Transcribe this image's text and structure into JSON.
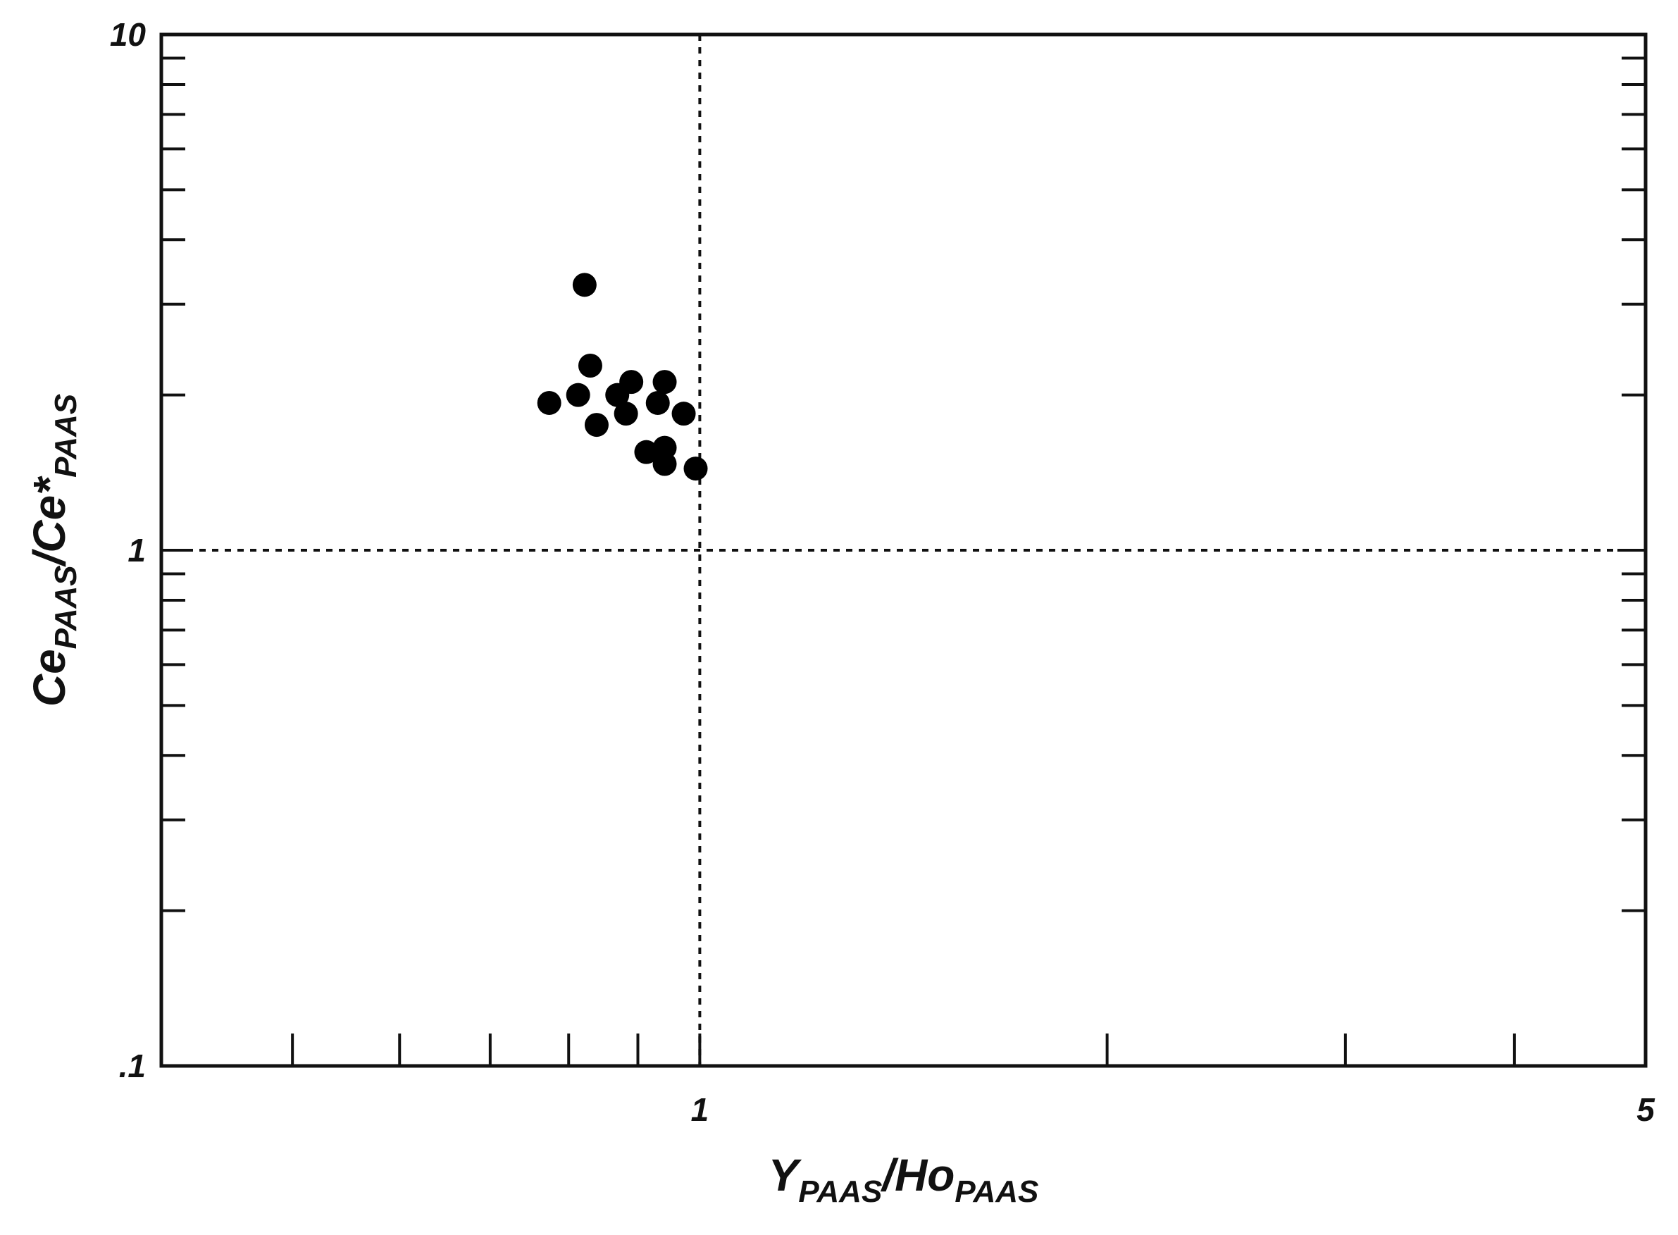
{
  "chart_data": {
    "type": "scatter",
    "xlabel": [
      "Y",
      "PAAS",
      "/Ho",
      "PAAS"
    ],
    "ylabel": [
      "Ce",
      "PAAS",
      "/Ce*",
      "PAAS"
    ],
    "xscale": "log",
    "yscale": "log",
    "xlim": [
      0.4,
      5
    ],
    "ylim": [
      0.1,
      10
    ],
    "xticks": [
      1,
      5
    ],
    "yticks": [
      {
        "value": 0.1,
        "label": ".1"
      },
      1,
      10
    ],
    "xminorticks": [
      0.5,
      0.6,
      0.7,
      0.8,
      0.9,
      2,
      3,
      4
    ],
    "yminorticks": [
      0.2,
      0.3,
      0.4,
      0.5,
      0.6,
      0.7,
      0.8,
      0.9,
      2,
      3,
      4,
      5,
      6,
      7,
      8,
      9
    ],
    "vlines": [
      1
    ],
    "hlines": [
      1
    ],
    "series": [
      {
        "color": "#000000",
        "x": [
          0.774,
          0.813,
          0.822,
          0.83,
          0.839,
          0.869,
          0.882,
          0.89,
          0.913,
          0.931,
          0.942,
          0.942,
          0.942,
          0.973,
          0.993
        ],
        "values": [
          1.93,
          2.0,
          3.27,
          2.28,
          1.75,
          2.0,
          1.84,
          2.12,
          1.55,
          1.93,
          2.12,
          1.58,
          1.47,
          1.84,
          1.44
        ]
      }
    ]
  }
}
